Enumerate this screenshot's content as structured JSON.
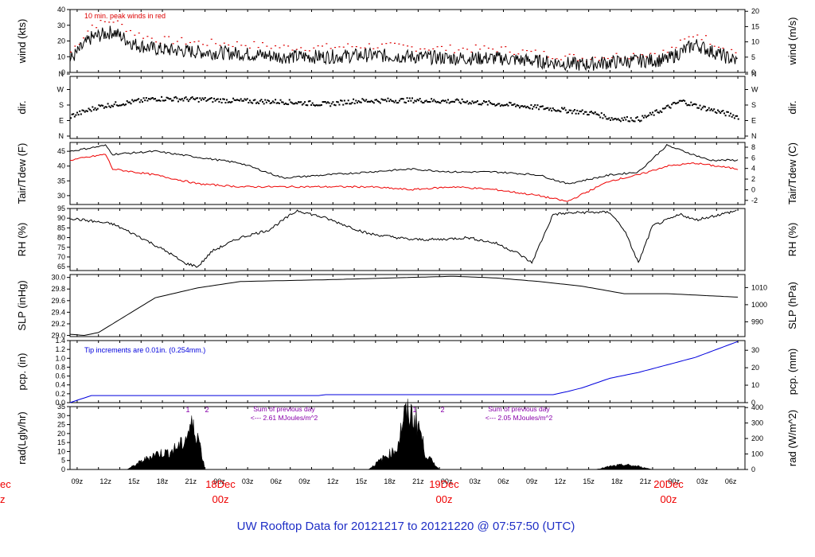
{
  "title": "UW Rooftop Data for 20121217  to  20121220 @ 07:57:50  (UTC)",
  "colors": {
    "peak": "#dd0000",
    "tdew": "#ee0000",
    "pcp": "#0000dd",
    "title": "#1f2fc6",
    "note_rad": "#8800aa",
    "date_label": "#ee0000"
  },
  "time_axis": {
    "hours_labels": [
      "09z",
      "12z",
      "15z",
      "18z",
      "21z",
      "00z",
      "03z",
      "06z",
      "09z",
      "12z",
      "15z",
      "18z",
      "21z",
      "00z",
      "03z",
      "06z",
      "09z",
      "12z",
      "15z",
      "18z",
      "21z",
      "00z",
      "03z",
      "06z"
    ],
    "day_markers": [
      {
        "date": "18Dec",
        "hour": "00z"
      },
      {
        "date": "19Dec",
        "hour": "00z"
      },
      {
        "date": "20Dec",
        "hour": "00z"
      }
    ],
    "clipped_left_date": "ec",
    "clipped_left_hour": "z"
  },
  "chart_data": [
    {
      "type": "line",
      "id": "wind",
      "ylabel_left": "wind (kts)",
      "ylabel_right": "wind (m/s)",
      "ylim": [
        0,
        40
      ],
      "yticks": [
        0,
        10,
        20,
        30,
        40
      ],
      "right_ticks": [
        "0",
        "5",
        "10",
        "15",
        "20"
      ],
      "annotation": "10 min. peak winds in red",
      "series": [
        {
          "values_x_hours": [
            0,
            3,
            6,
            9,
            12,
            18,
            24,
            30,
            36,
            42,
            48,
            54,
            60,
            66,
            72,
            78,
            84,
            88,
            90,
            94
          ],
          "values": [
            8,
            22,
            26,
            18,
            15,
            13,
            12,
            10,
            10,
            11,
            10,
            9,
            9,
            7,
            5,
            7,
            8,
            18,
            14,
            7
          ]
        },
        {
          "values_x_hours": [
            0,
            3,
            6,
            9,
            12,
            18,
            24,
            30,
            36,
            42,
            48,
            54,
            60,
            66,
            72,
            78,
            84,
            88,
            90,
            94
          ],
          "values": [
            13,
            30,
            33,
            25,
            21,
            19,
            18,
            16,
            16,
            17,
            16,
            15,
            15,
            12,
            9,
            11,
            13,
            25,
            20,
            12
          ]
        }
      ]
    },
    {
      "type": "scatter",
      "id": "dir",
      "ylabel_left": "dir.",
      "ylabel_right": "dir.",
      "tick_labels": [
        "N",
        "E",
        "S",
        "W",
        "N"
      ],
      "values_x_hours": [
        0,
        4,
        8,
        12,
        18,
        24,
        30,
        36,
        40,
        48,
        56,
        62,
        68,
        74,
        76,
        80,
        82,
        86,
        88,
        94
      ],
      "values": [
        130,
        190,
        215,
        240,
        235,
        225,
        220,
        205,
        225,
        230,
        220,
        200,
        175,
        145,
        115,
        110,
        145,
        225,
        195,
        125
      ]
    },
    {
      "type": "line",
      "id": "temp",
      "ylabel_left": "Tair/Tdew (F)",
      "ylabel_right": "Tair/Tdew (C)",
      "ylim": [
        27,
        48
      ],
      "yticks": [
        30,
        35,
        40,
        45
      ],
      "right_ticks": [
        "-2",
        "0",
        "2",
        "4",
        "6",
        "8"
      ],
      "series": [
        {
          "values_x_hours": [
            0,
            5,
            6,
            12,
            18,
            24,
            30,
            36,
            42,
            48,
            54,
            60,
            66,
            70,
            76,
            80,
            84,
            90,
            94
          ],
          "values": [
            45,
            47,
            44,
            45,
            43,
            41,
            36,
            37,
            38,
            39,
            38,
            38,
            37,
            34,
            37,
            38,
            47,
            42,
            42
          ]
        },
        {
          "values_x_hours": [
            0,
            5,
            6,
            12,
            18,
            24,
            30,
            36,
            42,
            48,
            54,
            60,
            66,
            70,
            76,
            80,
            84,
            88,
            94
          ],
          "values": [
            42,
            44,
            39,
            37,
            34,
            33,
            33,
            33,
            33,
            32,
            33,
            32,
            30,
            28,
            35,
            37,
            40,
            41,
            39
          ]
        }
      ]
    },
    {
      "type": "line",
      "id": "rh",
      "ylabel_left": "RH (%)",
      "ylabel_right": "RH (%)",
      "ylim": [
        63,
        95
      ],
      "yticks": [
        65,
        70,
        75,
        80,
        85,
        90,
        95
      ],
      "values_x_hours": [
        0,
        6,
        10,
        14,
        16,
        18,
        20,
        24,
        28,
        32,
        36,
        42,
        48,
        52,
        56,
        60,
        63,
        65,
        68,
        72,
        76,
        78,
        80,
        82,
        86,
        88,
        94
      ],
      "values": [
        90,
        87,
        80,
        72,
        67,
        65,
        73,
        80,
        84,
        94,
        90,
        82,
        79,
        79,
        80,
        77,
        72,
        67,
        92,
        93,
        93,
        84,
        67,
        86,
        92,
        89,
        94
      ]
    },
    {
      "type": "line",
      "id": "slp",
      "ylabel_left": "SLP (inHg)",
      "ylabel_right": "SLP (hPa)",
      "ylim": [
        28.98,
        30.05
      ],
      "yticks": [
        29.0,
        29.2,
        29.4,
        29.6,
        29.8,
        30.0
      ],
      "right_ticks": [
        "990",
        "1000",
        "1010"
      ],
      "values_x_hours": [
        0,
        2,
        4,
        8,
        12,
        18,
        24,
        36,
        48,
        54,
        60,
        66,
        72,
        78,
        84,
        94
      ],
      "values": [
        29.02,
        29.0,
        29.05,
        29.35,
        29.65,
        29.82,
        29.93,
        29.96,
        30.0,
        30.02,
        29.99,
        29.93,
        29.85,
        29.72,
        29.72,
        29.66
      ]
    },
    {
      "type": "line",
      "id": "pcp",
      "ylabel_left": "pcp. (in)",
      "ylabel_right": "pcp. (mm)",
      "ylim": [
        0,
        1.4
      ],
      "yticks": [
        0,
        0.2,
        0.4,
        0.6,
        0.8,
        1.0,
        1.2,
        1.4
      ],
      "right_ticks": [
        "0",
        "10",
        "20",
        "30"
      ],
      "annotation": "Tip increments are 0.01in. (0.254mm.)",
      "values_x_hours": [
        0,
        3,
        35,
        36,
        68,
        70,
        72,
        76,
        80,
        84,
        88,
        94
      ],
      "values": [
        0,
        0.16,
        0.16,
        0.18,
        0.18,
        0.25,
        0.33,
        0.55,
        0.68,
        0.85,
        1.02,
        1.38
      ]
    },
    {
      "type": "area",
      "id": "rad",
      "ylabel_left": "rad(Lgly/hr)",
      "ylabel_right": "rad (W/m^2)",
      "ylim": [
        0,
        35
      ],
      "yticks": [
        0,
        5,
        10,
        15,
        20,
        25,
        30,
        35
      ],
      "right_ticks": [
        "0",
        "100",
        "200",
        "300",
        "400"
      ],
      "notes": [
        {
          "text1": "Sum of previous day",
          "text2": "<--- 2.61 MJoules/m^2"
        },
        {
          "text1": "Sum of previous day",
          "text2": "<--- 2.05 MJoules/m^2"
        }
      ],
      "markers": [
        "1",
        "2",
        "1",
        "2"
      ],
      "series": [
        {
          "values_x_hours": [
            8,
            10,
            12,
            14,
            16,
            17,
            18,
            19
          ],
          "values": [
            0,
            5,
            10,
            11,
            17,
            28,
            22,
            0
          ]
        },
        {
          "values_x_hours": [
            42,
            44,
            46,
            47,
            48,
            49,
            50,
            52
          ],
          "values": [
            0,
            7,
            13,
            34,
            35,
            30,
            10,
            0
          ]
        },
        {
          "values_x_hours": [
            74,
            76,
            78,
            80,
            82
          ],
          "values": [
            0,
            2,
            3,
            2,
            0
          ]
        }
      ]
    }
  ]
}
